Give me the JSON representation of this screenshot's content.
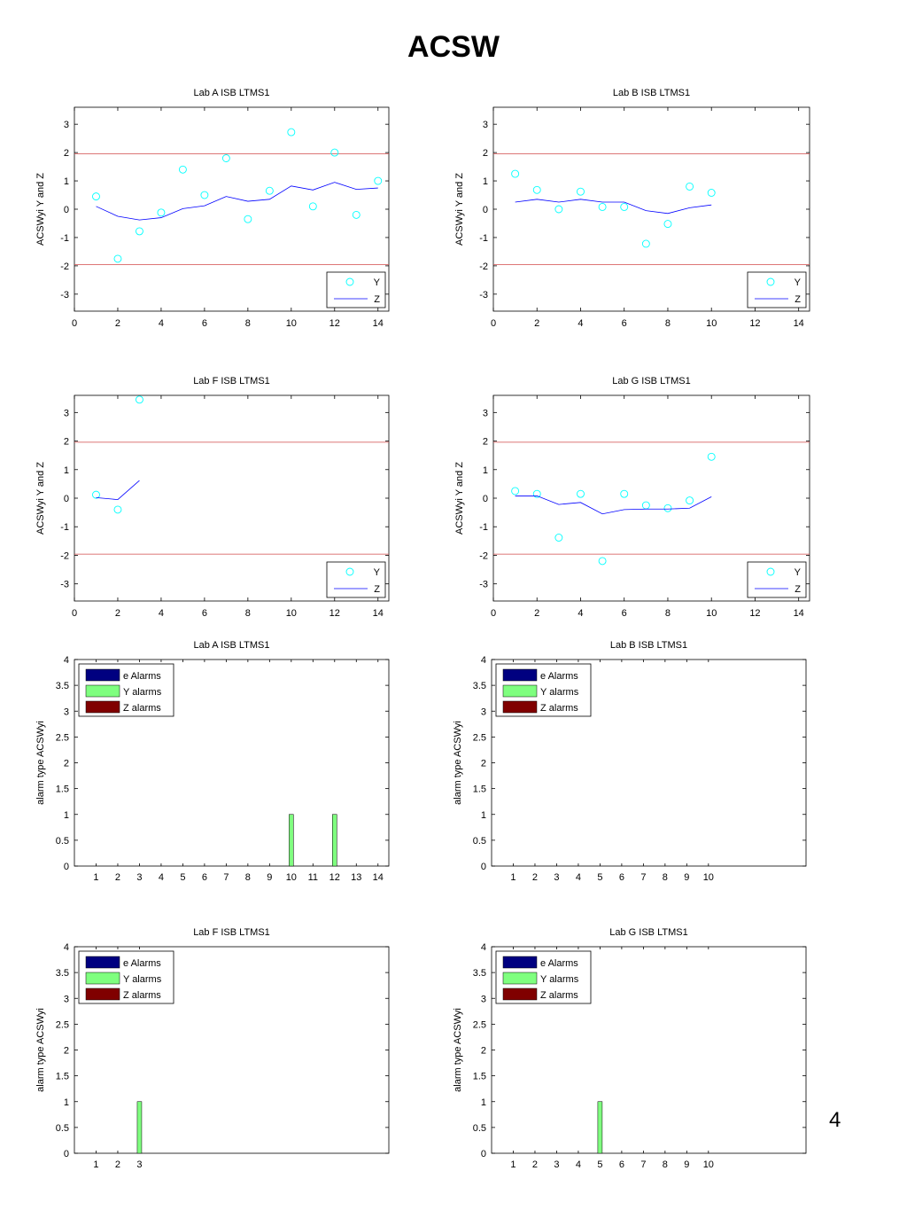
{
  "page": {
    "title": "ACSW",
    "page_number": "4"
  },
  "colors": {
    "y_marker": "#00ffff",
    "z_line": "#0000ff",
    "limit_line": "#d24a4a",
    "e_alarms": "#000080",
    "y_alarms": "#7fff7f",
    "z_alarms": "#800000"
  },
  "chart_data": [
    {
      "type": "line",
      "title": "Lab A ISB LTMS1",
      "xlabel": "",
      "ylabel": "ACSWyi Y and Z",
      "xlim": [
        0,
        14.5
      ],
      "ylim": [
        -3.6,
        3.6
      ],
      "xticks": [
        0,
        2,
        4,
        6,
        8,
        10,
        12,
        14
      ],
      "yticks": [
        -3,
        -2,
        -1,
        0,
        1,
        2,
        3
      ],
      "limits": [
        1.96,
        -1.96
      ],
      "legend": [
        "Y",
        "Z"
      ],
      "legend_position": "bottom-right",
      "series": [
        {
          "name": "Y",
          "style": "circle",
          "x": [
            1,
            2,
            3,
            4,
            5,
            6,
            7,
            8,
            9,
            10,
            11,
            12,
            13,
            14
          ],
          "y": [
            0.45,
            -1.75,
            -0.78,
            -0.12,
            1.4,
            0.5,
            1.8,
            -0.35,
            0.65,
            2.72,
            0.1,
            2.0,
            -0.2,
            1.0
          ]
        },
        {
          "name": "Z",
          "style": "line",
          "x": [
            1,
            2,
            3,
            4,
            5,
            6,
            7,
            8,
            9,
            10,
            11,
            12,
            13,
            14
          ],
          "y": [
            0.1,
            -0.25,
            -0.38,
            -0.3,
            0.02,
            0.12,
            0.45,
            0.28,
            0.35,
            0.82,
            0.68,
            0.95,
            0.7,
            0.75
          ]
        }
      ]
    },
    {
      "type": "line",
      "title": "Lab B ISB LTMS1",
      "xlabel": "",
      "ylabel": "ACSWyi Y and Z",
      "xlim": [
        0,
        14.5
      ],
      "ylim": [
        -3.6,
        3.6
      ],
      "xticks": [
        0,
        2,
        4,
        6,
        8,
        10,
        12,
        14
      ],
      "yticks": [
        -3,
        -2,
        -1,
        0,
        1,
        2,
        3
      ],
      "limits": [
        1.96,
        -1.96
      ],
      "legend": [
        "Y",
        "Z"
      ],
      "legend_position": "bottom-right",
      "series": [
        {
          "name": "Y",
          "style": "circle",
          "x": [
            1,
            2,
            3,
            4,
            5,
            6,
            7,
            8,
            9,
            10
          ],
          "y": [
            1.25,
            0.68,
            0.0,
            0.62,
            0.08,
            0.08,
            -1.22,
            -0.52,
            0.8,
            0.58
          ]
        },
        {
          "name": "Z",
          "style": "line",
          "x": [
            1,
            2,
            3,
            4,
            5,
            6,
            7,
            8,
            9,
            10
          ],
          "y": [
            0.25,
            0.35,
            0.25,
            0.35,
            0.25,
            0.25,
            -0.05,
            -0.15,
            0.05,
            0.15
          ]
        }
      ]
    },
    {
      "type": "line",
      "title": "Lab F ISB LTMS1",
      "xlabel": "",
      "ylabel": "ACSWyi Y and Z",
      "xlim": [
        0,
        14.5
      ],
      "ylim": [
        -3.6,
        3.6
      ],
      "xticks": [
        0,
        2,
        4,
        6,
        8,
        10,
        12,
        14
      ],
      "yticks": [
        -3,
        -2,
        -1,
        0,
        1,
        2,
        3
      ],
      "limits": [
        1.96,
        -1.96
      ],
      "legend": [
        "Y",
        "Z"
      ],
      "legend_position": "bottom-right",
      "series": [
        {
          "name": "Y",
          "style": "circle",
          "x": [
            1,
            2,
            3
          ],
          "y": [
            0.12,
            -0.4,
            3.45
          ]
        },
        {
          "name": "Z",
          "style": "line",
          "x": [
            1,
            2,
            3
          ],
          "y": [
            0.02,
            -0.05,
            0.62
          ]
        }
      ]
    },
    {
      "type": "line",
      "title": "Lab G ISB LTMS1",
      "xlabel": "",
      "ylabel": "ACSWyi Y and Z",
      "xlim": [
        0,
        14.5
      ],
      "ylim": [
        -3.6,
        3.6
      ],
      "xticks": [
        0,
        2,
        4,
        6,
        8,
        10,
        12,
        14
      ],
      "yticks": [
        -3,
        -2,
        -1,
        0,
        1,
        2,
        3
      ],
      "limits": [
        1.96,
        -1.96
      ],
      "legend": [
        "Y",
        "Z"
      ],
      "legend_position": "bottom-right",
      "series": [
        {
          "name": "Y",
          "style": "circle",
          "x": [
            1,
            2,
            3,
            4,
            5,
            6,
            7,
            8,
            9,
            10
          ],
          "y": [
            0.25,
            0.15,
            -1.38,
            0.15,
            -2.2,
            0.15,
            -0.25,
            -0.35,
            -0.08,
            1.45
          ]
        },
        {
          "name": "Z",
          "style": "line",
          "x": [
            1,
            2,
            3,
            4,
            5,
            6,
            7,
            8,
            9,
            10
          ],
          "y": [
            0.08,
            0.08,
            -0.22,
            -0.15,
            -0.55,
            -0.4,
            -0.38,
            -0.38,
            -0.35,
            0.05
          ]
        }
      ]
    },
    {
      "type": "bar",
      "title": "Lab A ISB LTMS1",
      "xlabel": "",
      "ylabel": "alarm type ACSWyi",
      "xlim": [
        0,
        14.5
      ],
      "ylim": [
        0,
        4
      ],
      "yticks": [
        0,
        0.5,
        1,
        1.5,
        2,
        2.5,
        3,
        3.5,
        4
      ],
      "categories": [
        "1",
        "2",
        "3",
        "4",
        "5",
        "6",
        "7",
        "8",
        "9",
        "10",
        "11",
        "12",
        "13",
        "14"
      ],
      "legend": [
        "e Alarms",
        "Y alarms",
        "Z alarms"
      ],
      "legend_position": "top-left",
      "series": [
        {
          "name": "e Alarms",
          "values": [
            0,
            0,
            0,
            0,
            0,
            0,
            0,
            0,
            0,
            0,
            0,
            0,
            0,
            0
          ]
        },
        {
          "name": "Y alarms",
          "values": [
            0,
            0,
            0,
            0,
            0,
            0,
            0,
            0,
            0,
            1,
            0,
            1,
            0,
            0
          ]
        },
        {
          "name": "Z alarms",
          "values": [
            0,
            0,
            0,
            0,
            0,
            0,
            0,
            0,
            0,
            0,
            0,
            0,
            0,
            0
          ]
        }
      ]
    },
    {
      "type": "bar",
      "title": "Lab B ISB LTMS1",
      "xlabel": "",
      "ylabel": "alarm type ACSWyi",
      "xlim": [
        0,
        14.5
      ],
      "ylim": [
        0,
        4
      ],
      "yticks": [
        0,
        0.5,
        1,
        1.5,
        2,
        2.5,
        3,
        3.5,
        4
      ],
      "categories": [
        "1",
        "2",
        "3",
        "4",
        "5",
        "6",
        "7",
        "8",
        "9",
        "10"
      ],
      "legend": [
        "e Alarms",
        "Y alarms",
        "Z alarms"
      ],
      "legend_position": "top-left",
      "series": [
        {
          "name": "e Alarms",
          "values": [
            0,
            0,
            0,
            0,
            0,
            0,
            0,
            0,
            0,
            0
          ]
        },
        {
          "name": "Y alarms",
          "values": [
            0,
            0,
            0,
            0,
            0,
            0,
            0,
            0,
            0,
            0
          ]
        },
        {
          "name": "Z alarms",
          "values": [
            0,
            0,
            0,
            0,
            0,
            0,
            0,
            0,
            0,
            0
          ]
        }
      ]
    },
    {
      "type": "bar",
      "title": "Lab F ISB LTMS1",
      "xlabel": "",
      "ylabel": "alarm type ACSWyi",
      "xlim": [
        0,
        14.5
      ],
      "ylim": [
        0,
        4
      ],
      "yticks": [
        0,
        0.5,
        1,
        1.5,
        2,
        2.5,
        3,
        3.5,
        4
      ],
      "categories": [
        "1",
        "2",
        "3"
      ],
      "legend": [
        "e Alarms",
        "Y alarms",
        "Z alarms"
      ],
      "legend_position": "top-left",
      "series": [
        {
          "name": "e Alarms",
          "values": [
            0,
            0,
            0
          ]
        },
        {
          "name": "Y alarms",
          "values": [
            0,
            0,
            1
          ]
        },
        {
          "name": "Z alarms",
          "values": [
            0,
            0,
            0
          ]
        }
      ]
    },
    {
      "type": "bar",
      "title": "Lab G ISB LTMS1",
      "xlabel": "",
      "ylabel": "alarm type ACSWyi",
      "xlim": [
        0,
        14.5
      ],
      "ylim": [
        0,
        4
      ],
      "yticks": [
        0,
        0.5,
        1,
        1.5,
        2,
        2.5,
        3,
        3.5,
        4
      ],
      "categories": [
        "1",
        "2",
        "3",
        "4",
        "5",
        "6",
        "7",
        "8",
        "9",
        "10"
      ],
      "legend": [
        "e Alarms",
        "Y alarms",
        "Z alarms"
      ],
      "legend_position": "top-left",
      "series": [
        {
          "name": "e Alarms",
          "values": [
            0,
            0,
            0,
            0,
            0,
            0,
            0,
            0,
            0,
            0
          ]
        },
        {
          "name": "Y alarms",
          "values": [
            0,
            0,
            0,
            0,
            1,
            0,
            0,
            0,
            0,
            0
          ]
        },
        {
          "name": "Z alarms",
          "values": [
            0,
            0,
            0,
            0,
            0,
            0,
            0,
            0,
            0,
            0
          ]
        }
      ]
    }
  ]
}
